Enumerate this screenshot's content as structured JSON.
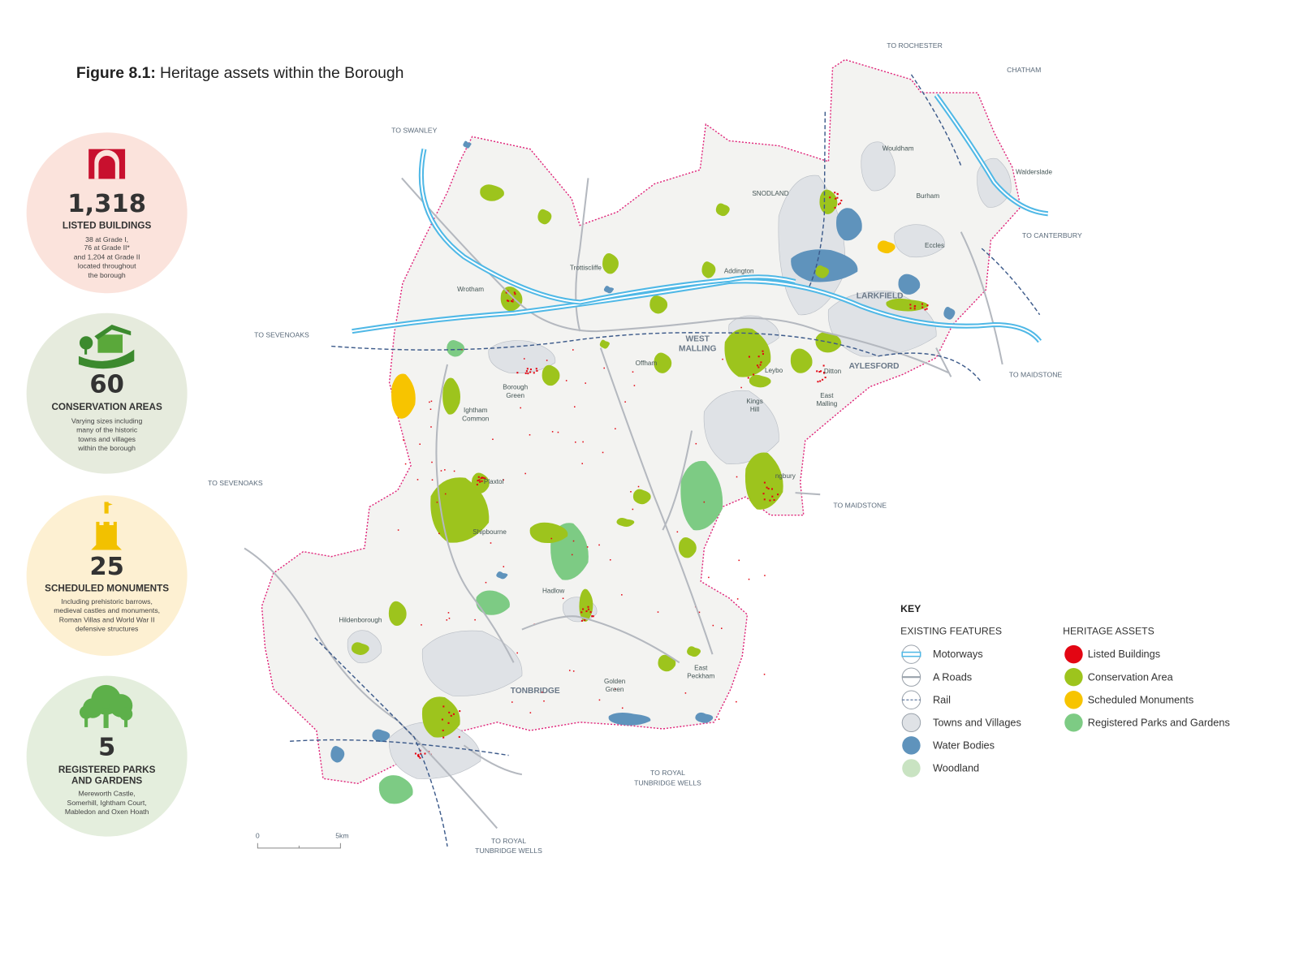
{
  "title": {
    "label": "Figure 8.1:",
    "text": "Heritage assets within the Borough"
  },
  "stats": [
    {
      "number": "1,318",
      "label": [
        "LISTED BUILDINGS"
      ],
      "description": [
        "38 at Grade I,",
        "76 at Grade II*",
        "and 1,204 at Grade II",
        "located throughout",
        "the borough"
      ]
    },
    {
      "number": "60",
      "label": [
        "CONSERVATION AREAS"
      ],
      "description": [
        "Varying sizes including",
        "many of the historic",
        "towns and villages",
        "within the borough"
      ]
    },
    {
      "number": "25",
      "label": [
        "SCHEDULED MONUMENTS"
      ],
      "description": [
        "Including prehistoric barrows,",
        "medieval castles and monuments,",
        "Roman Villas and World War II",
        "defensive structures"
      ]
    },
    {
      "number": "5",
      "label": [
        "REGISTERED PARKS",
        "AND GARDENS"
      ],
      "description": [
        "Mereworth Castle,",
        "Somerhill, Ightham Court,",
        "Mabledon and Oxen Hoath"
      ]
    }
  ],
  "directions": [
    [
      "TO ROCHESTER"
    ],
    [
      "CHATHAM"
    ],
    [
      "TO SWANLEY"
    ],
    [
      "TO CANTERBURY"
    ],
    [
      "TO SEVENOAKS"
    ],
    [
      "TO MAIDSTONE"
    ],
    [
      "TO SEVENOAKS"
    ],
    [
      "TO MAIDSTONE"
    ],
    [
      "TO ROYAL",
      "TUNBRIDGE WELLS"
    ],
    [
      "TO ROYAL",
      "TUNBRIDGE WELLS"
    ]
  ],
  "places": [
    [
      "Wouldham"
    ],
    [
      "Walderslade"
    ],
    [
      "SNODLAND"
    ],
    [
      "Burham"
    ],
    [
      "Eccles"
    ],
    [
      "Trottiscliffe"
    ],
    [
      "Addington"
    ],
    [
      "Wrotham"
    ],
    [
      "LARKFIELD"
    ],
    [
      "WEST",
      "MALLING"
    ],
    [
      "AYLESFORD"
    ],
    [
      "Offham"
    ],
    [
      "Leybo"
    ],
    [
      "Ditton"
    ],
    [
      "East",
      "Malling"
    ],
    [
      "Borough",
      "Green"
    ],
    [
      "Ightham",
      "Common"
    ],
    [
      "Kings",
      "Hill"
    ],
    [
      "Plaxtol"
    ],
    [
      "Shipbourne"
    ],
    [
      "ngbury"
    ],
    [
      "Hadlow"
    ],
    [
      "Hildenborough"
    ],
    [
      "TONBRIDGE"
    ],
    [
      "Golden",
      "Green"
    ],
    [
      "East",
      "Peckham"
    ]
  ],
  "key": {
    "title": "KEY",
    "existing": {
      "heading": "EXISTING FEATURES",
      "items": [
        "Motorways",
        "A Roads",
        "Rail",
        "Towns and Villages",
        "Water Bodies",
        "Woodland"
      ]
    },
    "heritage": {
      "heading": "HERITAGE ASSETS",
      "items": [
        "Listed Buildings",
        "Conservation Area",
        "Scheduled Monuments",
        "Registered Parks and Gardens"
      ]
    }
  },
  "scale": [
    "0",
    "5km"
  ]
}
